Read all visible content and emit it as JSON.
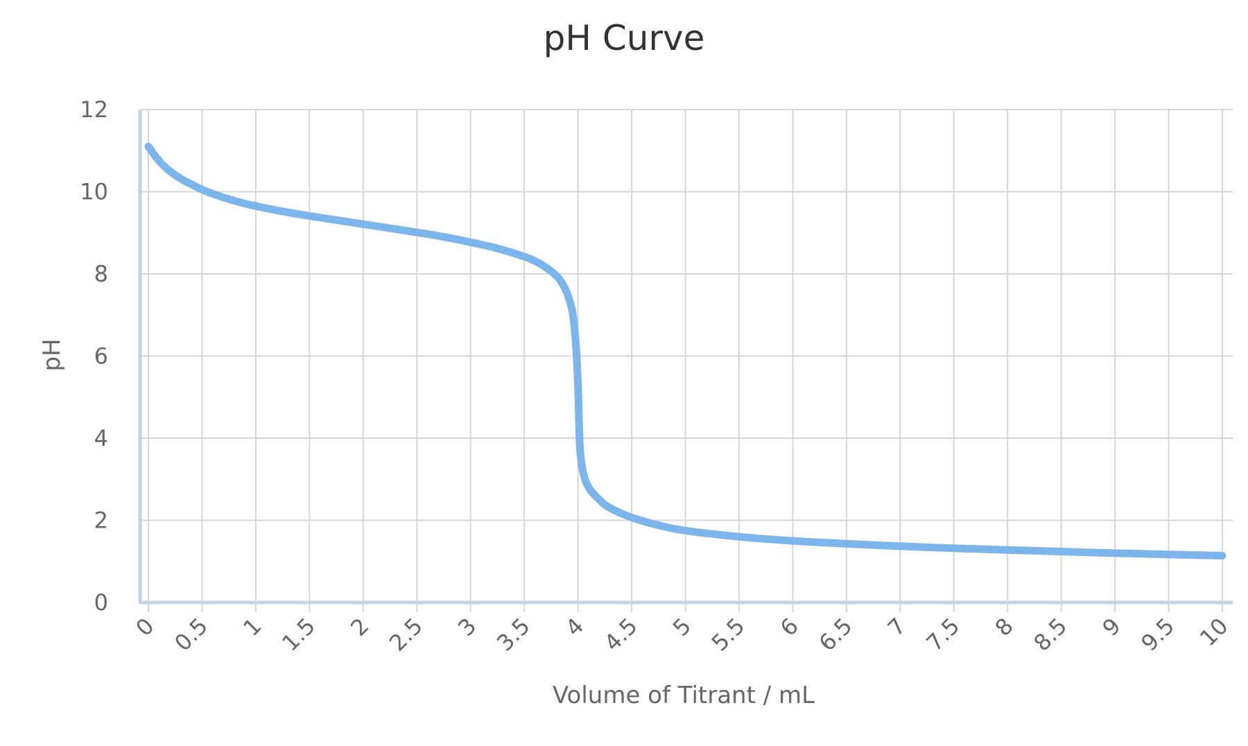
{
  "chart_data": {
    "type": "line",
    "title": "pH Curve",
    "xlabel": "Volume of Titrant / mL",
    "ylabel": "pH",
    "xlim": [
      0,
      10
    ],
    "ylim": [
      0,
      12
    ],
    "x_ticks": [
      "0",
      "0.5",
      "1",
      "1.5",
      "2",
      "2.5",
      "3",
      "3.5",
      "4",
      "4.5",
      "5",
      "5.5",
      "6",
      "6.5",
      "7",
      "7.5",
      "8",
      "8.5",
      "9",
      "9.5",
      "10"
    ],
    "y_ticks": [
      "0",
      "2",
      "4",
      "6",
      "8",
      "10",
      "12"
    ],
    "grid": true,
    "legend": "none",
    "series": [
      {
        "color": "#7cb5ec",
        "points": [
          [
            0,
            11.1
          ],
          [
            0.1,
            10.75
          ],
          [
            0.2,
            10.5
          ],
          [
            0.3,
            10.32
          ],
          [
            0.4,
            10.18
          ],
          [
            0.5,
            10.05
          ],
          [
            0.6,
            9.95
          ],
          [
            0.7,
            9.86
          ],
          [
            0.8,
            9.78
          ],
          [
            0.9,
            9.71
          ],
          [
            1.0,
            9.65
          ],
          [
            1.25,
            9.52
          ],
          [
            1.5,
            9.41
          ],
          [
            1.75,
            9.31
          ],
          [
            2.0,
            9.21
          ],
          [
            2.25,
            9.11
          ],
          [
            2.5,
            9.01
          ],
          [
            2.75,
            8.9
          ],
          [
            3.0,
            8.77
          ],
          [
            3.25,
            8.62
          ],
          [
            3.5,
            8.42
          ],
          [
            3.6,
            8.31
          ],
          [
            3.7,
            8.16
          ],
          [
            3.8,
            7.95
          ],
          [
            3.85,
            7.78
          ],
          [
            3.9,
            7.52
          ],
          [
            3.95,
            7.05
          ],
          [
            3.98,
            6.3
          ],
          [
            4.0,
            5.3
          ],
          [
            4.01,
            4.4
          ],
          [
            4.02,
            3.7
          ],
          [
            4.05,
            3.15
          ],
          [
            4.1,
            2.8
          ],
          [
            4.2,
            2.5
          ],
          [
            4.3,
            2.3
          ],
          [
            4.5,
            2.07
          ],
          [
            4.75,
            1.88
          ],
          [
            5.0,
            1.75
          ],
          [
            5.5,
            1.6
          ],
          [
            6.0,
            1.5
          ],
          [
            6.5,
            1.43
          ],
          [
            7.0,
            1.37
          ],
          [
            7.5,
            1.32
          ],
          [
            8.0,
            1.28
          ],
          [
            8.5,
            1.24
          ],
          [
            9.0,
            1.2
          ],
          [
            9.5,
            1.17
          ],
          [
            10.0,
            1.14
          ]
        ]
      }
    ]
  }
}
